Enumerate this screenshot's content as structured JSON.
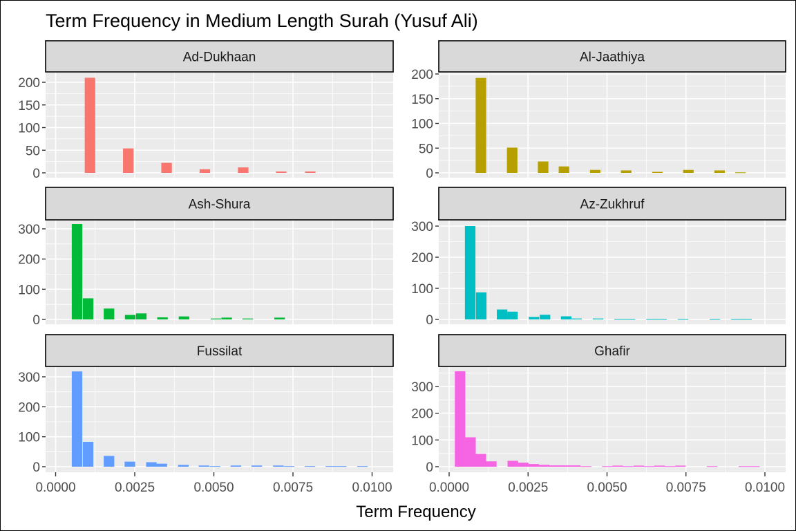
{
  "chart_data": {
    "type": "bar",
    "subtype": "faceted-histogram",
    "title": "Term Frequency in Medium Length Surah (Yusuf Ali)",
    "xlabel": "Term Frequency",
    "ylabel": "",
    "xlim": [
      0.0,
      0.0105
    ],
    "x_ticks": [
      "0.0000",
      "0.0025",
      "0.0050",
      "0.0075",
      "0.0100"
    ],
    "x_tick_values": [
      0.0,
      0.0025,
      0.005,
      0.0075,
      0.01
    ],
    "bin_width": 0.000333,
    "grid": true,
    "legend": "none",
    "facets": [
      {
        "name": "Ad-Dukhaan",
        "color": "#F8766D",
        "y_ticks": [
          0,
          50,
          100,
          150,
          200
        ],
        "ylim": [
          0,
          220
        ],
        "bins": [
          {
            "x": 0.00092,
            "count": 210
          },
          {
            "x": 0.00213,
            "count": 54
          },
          {
            "x": 0.00334,
            "count": 22
          },
          {
            "x": 0.00455,
            "count": 8
          },
          {
            "x": 0.00576,
            "count": 12
          },
          {
            "x": 0.00696,
            "count": 3
          },
          {
            "x": 0.00788,
            "count": 3
          }
        ]
      },
      {
        "name": "Al-Jaathiya",
        "color": "#B79F00",
        "y_ticks": [
          0,
          50,
          100,
          150,
          200
        ],
        "ylim": [
          0,
          205
        ],
        "bins": [
          {
            "x": 0.00084,
            "count": 192
          },
          {
            "x": 0.00183,
            "count": 51
          },
          {
            "x": 0.00281,
            "count": 23
          },
          {
            "x": 0.00347,
            "count": 13
          },
          {
            "x": 0.00446,
            "count": 6
          },
          {
            "x": 0.00544,
            "count": 5
          },
          {
            "x": 0.00643,
            "count": 2
          },
          {
            "x": 0.00741,
            "count": 6
          },
          {
            "x": 0.0084,
            "count": 5
          },
          {
            "x": 0.00906,
            "count": 1
          }
        ]
      },
      {
        "name": "Ash-Shura",
        "color": "#00BA38",
        "y_ticks": [
          0,
          100,
          200,
          300
        ],
        "ylim": [
          0,
          330
        ],
        "bins": [
          {
            "x": 0.00051,
            "count": 316
          },
          {
            "x": 0.00086,
            "count": 70
          },
          {
            "x": 0.00152,
            "count": 36
          },
          {
            "x": 0.00219,
            "count": 15
          },
          {
            "x": 0.00254,
            "count": 20
          },
          {
            "x": 0.00321,
            "count": 7
          },
          {
            "x": 0.00389,
            "count": 10
          },
          {
            "x": 0.0049,
            "count": 3
          },
          {
            "x": 0.00524,
            "count": 6
          },
          {
            "x": 0.0059,
            "count": 3
          },
          {
            "x": 0.00691,
            "count": 6
          }
        ]
      },
      {
        "name": "Az-Zukhruf",
        "color": "#00BFC4",
        "y_ticks": [
          0,
          100,
          200,
          300
        ],
        "ylim": [
          0,
          330
        ],
        "bins": [
          {
            "x": 0.0005,
            "count": 300
          },
          {
            "x": 0.00085,
            "count": 87
          },
          {
            "x": 0.00151,
            "count": 32
          },
          {
            "x": 0.00184,
            "count": 25
          },
          {
            "x": 0.00252,
            "count": 8
          },
          {
            "x": 0.00287,
            "count": 15
          },
          {
            "x": 0.00354,
            "count": 10
          },
          {
            "x": 0.00387,
            "count": 3
          },
          {
            "x": 0.00455,
            "count": 3
          },
          {
            "x": 0.00523,
            "count": 1
          },
          {
            "x": 0.00556,
            "count": 1
          },
          {
            "x": 0.00624,
            "count": 1
          },
          {
            "x": 0.00656,
            "count": 1
          },
          {
            "x": 0.00724,
            "count": 1
          },
          {
            "x": 0.00825,
            "count": 1
          },
          {
            "x": 0.00893,
            "count": 1
          },
          {
            "x": 0.00925,
            "count": 1
          }
        ]
      },
      {
        "name": "Fussilat",
        "color": "#619CFF",
        "y_ticks": [
          0,
          100,
          200,
          300
        ],
        "ylim": [
          0,
          330
        ],
        "bins": [
          {
            "x": 0.00051,
            "count": 318
          },
          {
            "x": 0.00086,
            "count": 83
          },
          {
            "x": 0.00152,
            "count": 36
          },
          {
            "x": 0.00218,
            "count": 17
          },
          {
            "x": 0.00286,
            "count": 15
          },
          {
            "x": 0.00319,
            "count": 10
          },
          {
            "x": 0.00387,
            "count": 6
          },
          {
            "x": 0.00452,
            "count": 4
          },
          {
            "x": 0.00487,
            "count": 2
          },
          {
            "x": 0.00553,
            "count": 4
          },
          {
            "x": 0.00619,
            "count": 4
          },
          {
            "x": 0.00687,
            "count": 4
          },
          {
            "x": 0.00721,
            "count": 2
          },
          {
            "x": 0.00787,
            "count": 2
          },
          {
            "x": 0.00853,
            "count": 2
          },
          {
            "x": 0.00886,
            "count": 2
          },
          {
            "x": 0.00953,
            "count": 2
          }
        ]
      },
      {
        "name": "Ghafir",
        "color": "#F564E3",
        "y_ticks": [
          0,
          100,
          200,
          300
        ],
        "ylim": [
          0,
          370
        ],
        "bins": [
          {
            "x": 0.00018,
            "count": 357
          },
          {
            "x": 0.00051,
            "count": 110
          },
          {
            "x": 0.00084,
            "count": 48
          },
          {
            "x": 0.00117,
            "count": 20
          },
          {
            "x": 0.00185,
            "count": 22
          },
          {
            "x": 0.00218,
            "count": 15
          },
          {
            "x": 0.00251,
            "count": 10
          },
          {
            "x": 0.00284,
            "count": 7
          },
          {
            "x": 0.00317,
            "count": 5
          },
          {
            "x": 0.0035,
            "count": 5
          },
          {
            "x": 0.00383,
            "count": 5
          },
          {
            "x": 0.00417,
            "count": 2
          },
          {
            "x": 0.00484,
            "count": 2
          },
          {
            "x": 0.00517,
            "count": 4
          },
          {
            "x": 0.0055,
            "count": 2
          },
          {
            "x": 0.00584,
            "count": 4
          },
          {
            "x": 0.00617,
            "count": 2
          },
          {
            "x": 0.0065,
            "count": 4
          },
          {
            "x": 0.00683,
            "count": 2
          },
          {
            "x": 0.00716,
            "count": 4
          },
          {
            "x": 0.00816,
            "count": 2
          },
          {
            "x": 0.00917,
            "count": 2
          },
          {
            "x": 0.0095,
            "count": 2
          }
        ]
      }
    ]
  }
}
